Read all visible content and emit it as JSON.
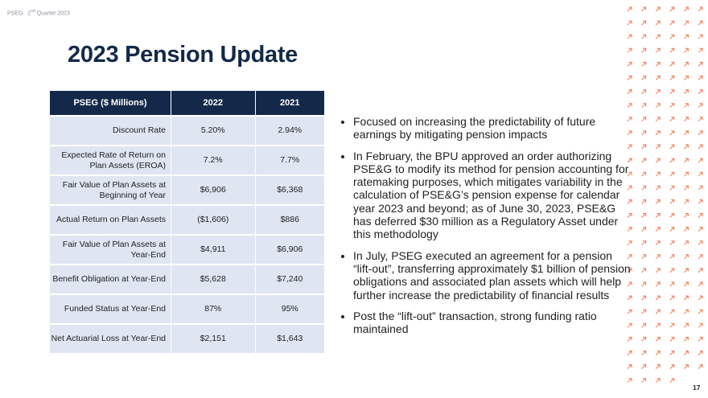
{
  "header": {
    "company": "PSEG",
    "quarter_number": "2",
    "quarter_suffix": "nd",
    "quarter_text": "Quarter 2023"
  },
  "title": "2023 Pension Update",
  "table": {
    "columns": [
      "PSEG ($ Millions)",
      "2022",
      "2021"
    ],
    "rows": [
      [
        "Discount Rate",
        "5.20%",
        "2.94%"
      ],
      [
        "Expected Rate of Return on Plan Assets (EROA)",
        "7.2%",
        "7.7%"
      ],
      [
        "Fair Value of Plan Assets at Beginning of Year",
        "$6,906",
        "$6,368"
      ],
      [
        "Actual Return on Plan Assets",
        "($1,606)",
        "$886"
      ],
      [
        "Fair Value of Plan Assets at Year-End",
        "$4,911",
        "$6,906"
      ],
      [
        "Benefit Obligation at Year-End",
        "$5,628",
        "$7,240"
      ],
      [
        "Funded Status at Year-End",
        "87%",
        "95%"
      ],
      [
        "Net Actuarial Loss at Year-End",
        "$2,151",
        "$1,643"
      ]
    ]
  },
  "bullets": [
    "Focused on increasing the predictability of future earnings by mitigating pension impacts",
    "In February, the BPU approved an order authorizing PSE&G to modify its method for pension accounting for ratemaking purposes, which mitigates variability in the calculation of PSE&G’s pension expense for calendar year 2023 and beyond; as of June 30, 2023, PSE&G has deferred $30 million as a Regulatory Asset under this methodology",
    "In July, PSEG executed an agreement for a pension “lift-out”, transferring approximately $1 billion of pension obligations and associated plan assets which will help further increase the predictability of financial results",
    "Post the “lift-out” transaction, strong funding ratio maintained"
  ],
  "page_number": "17"
}
